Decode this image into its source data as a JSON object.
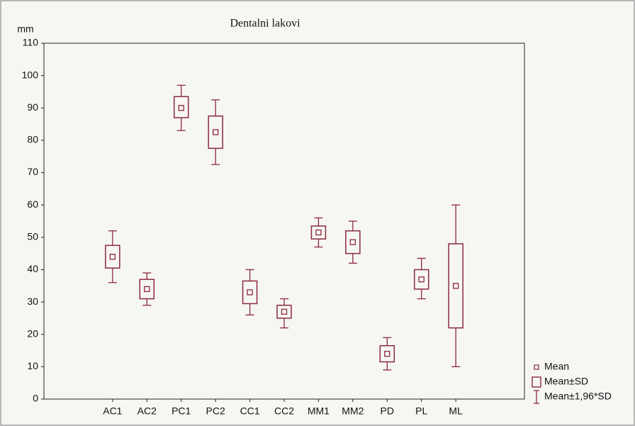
{
  "chart_data": {
    "type": "box",
    "title": "Dentalni lakovi",
    "y_label": "mm",
    "categories": [
      "AC1",
      "AC2",
      "PC1",
      "PC2",
      "CC1",
      "CC2",
      "MM1",
      "MM2",
      "PD",
      "PL",
      "ML"
    ],
    "mean": [
      44,
      34,
      90,
      82.5,
      33,
      27,
      51.5,
      48.5,
      14,
      37,
      35
    ],
    "box_low": [
      40.5,
      31,
      87,
      77.5,
      29.5,
      25,
      49.5,
      45,
      11.5,
      34,
      22
    ],
    "box_high": [
      47.5,
      37,
      93.5,
      87.5,
      36.5,
      29,
      53.5,
      52,
      16.5,
      40,
      48
    ],
    "whisker_low": [
      36,
      29,
      83,
      72.5,
      26,
      22,
      47,
      42,
      9,
      31,
      10
    ],
    "whisker_high": [
      52,
      39,
      97,
      92.5,
      40,
      31,
      56,
      55,
      19,
      43.5,
      60
    ],
    "legend": [
      "Mean",
      "Mean±SD",
      "Mean±1,96*SD"
    ],
    "color": "#8b2a3a",
    "ylim": [
      0,
      110
    ],
    "yticks": [
      0,
      10,
      20,
      30,
      40,
      50,
      60,
      70,
      80,
      90,
      100,
      110
    ]
  }
}
